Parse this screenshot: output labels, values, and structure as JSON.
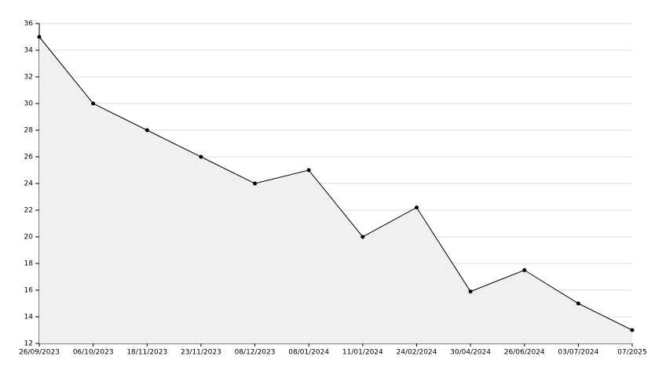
{
  "chart_data": {
    "type": "area",
    "categories": [
      "26/09/2023",
      "06/10/2023",
      "18/11/2023",
      "23/11/2023",
      "08/12/2023",
      "08/01/2024",
      "11/01/2024",
      "24/02/2024",
      "30/04/2024",
      "26/06/2024",
      "03/07/2024",
      "07/2025"
    ],
    "values": [
      35,
      30,
      28,
      26,
      24,
      25,
      20,
      22.2,
      15.9,
      17.5,
      15,
      13
    ],
    "color": "#000000",
    "fill": "#f0f0f0",
    "ylim": [
      12,
      36
    ],
    "yticks": [
      12,
      14,
      16,
      18,
      20,
      22,
      24,
      26,
      28,
      30,
      32,
      34,
      36
    ],
    "grid": true
  }
}
